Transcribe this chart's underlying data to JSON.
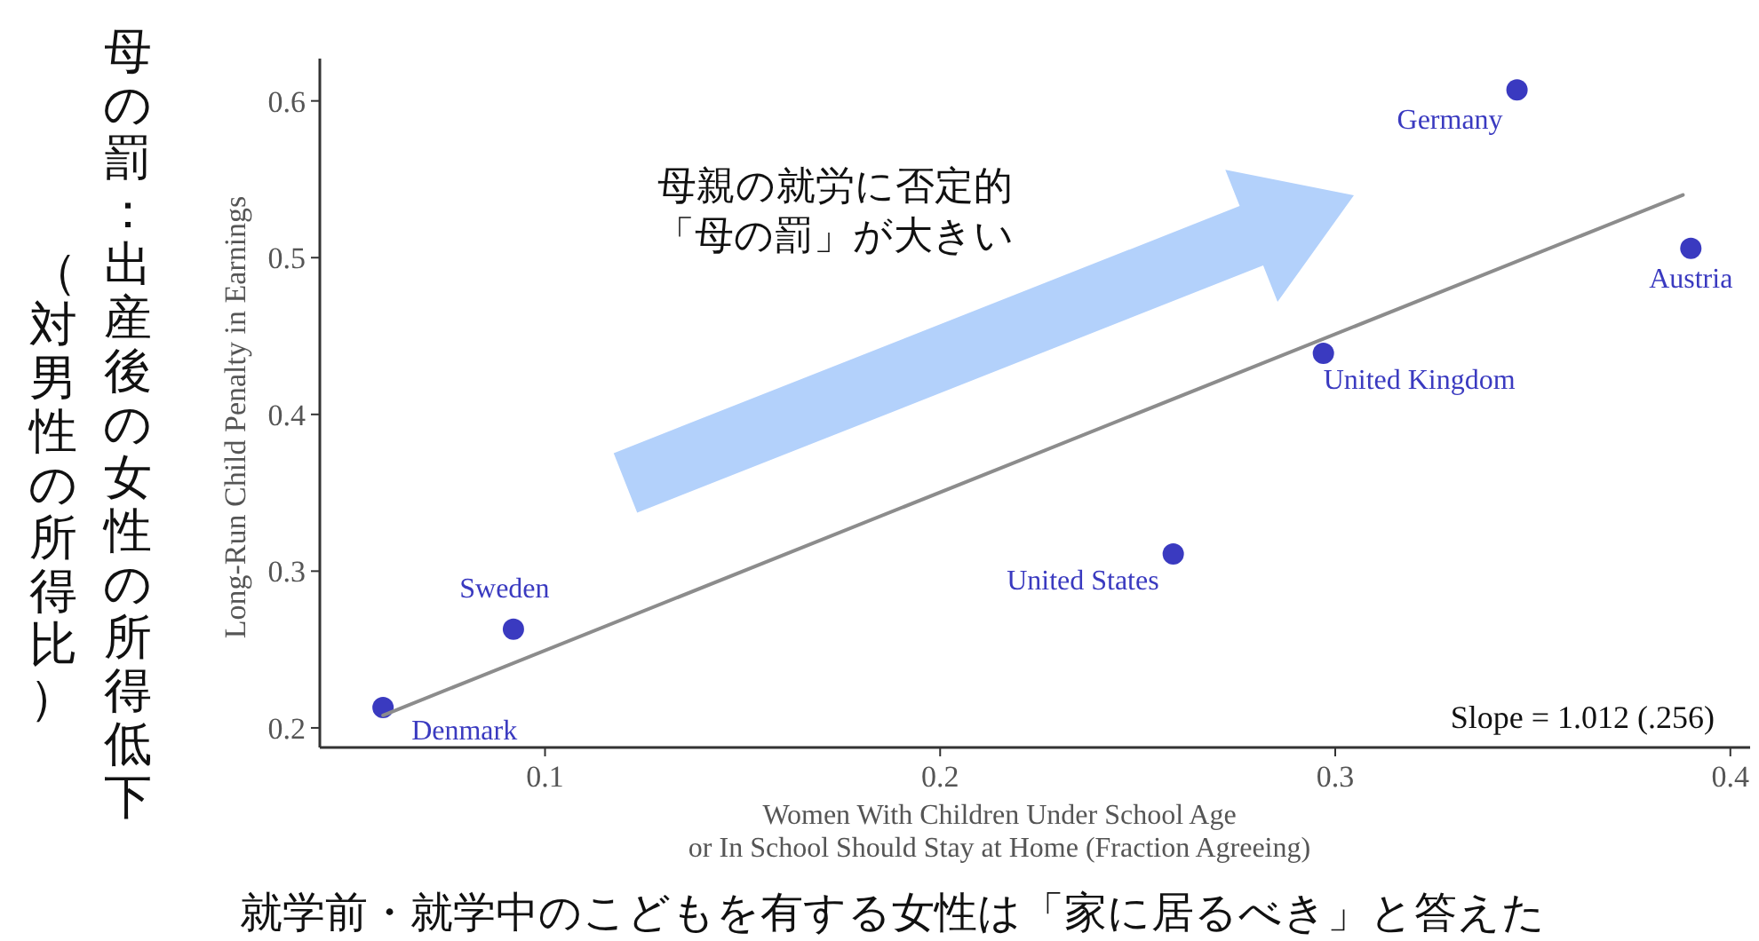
{
  "chart_data": {
    "type": "scatter",
    "ylabel": "Long-Run Child Penalty in Earnings",
    "xlabel": "Women With Children Under School Age\nor In School Should Stay at Home (Fraction Agreeing)",
    "xlim": [
      0.043,
      0.405
    ],
    "xticks": [
      0.1,
      0.2,
      0.3,
      0.4
    ],
    "ylim": [
      0.1875,
      0.627
    ],
    "yticks": [
      0.2,
      0.3,
      0.4,
      0.5,
      0.6
    ],
    "series": [
      {
        "type": "scatter",
        "marker": "circle",
        "color": "#3a3ac0",
        "x": [
          0.059,
          0.092,
          0.259,
          0.297,
          0.346,
          0.39
        ],
        "values": [
          0.213,
          0.263,
          0.311,
          0.439,
          0.607,
          0.506
        ],
        "value_labels": [
          "Denmark",
          "Sweden",
          "United States",
          "United Kingdom",
          "Germany",
          "Austria"
        ]
      },
      {
        "type": "line",
        "color": "#8c8c8c",
        "x": [
          0.059,
          0.388
        ],
        "values": [
          0.208,
          0.54
        ]
      }
    ],
    "annotations": [
      "母親の就労に否定的",
      "「母の罰」が大きい",
      "Slope = 1.012 (.256)",
      "母の罰：出産後の女性の所得低下",
      "（対男性の所得比）",
      "就学前・就学中のこどもを有する女性は「家に居るべき」と答えた"
    ]
  }
}
